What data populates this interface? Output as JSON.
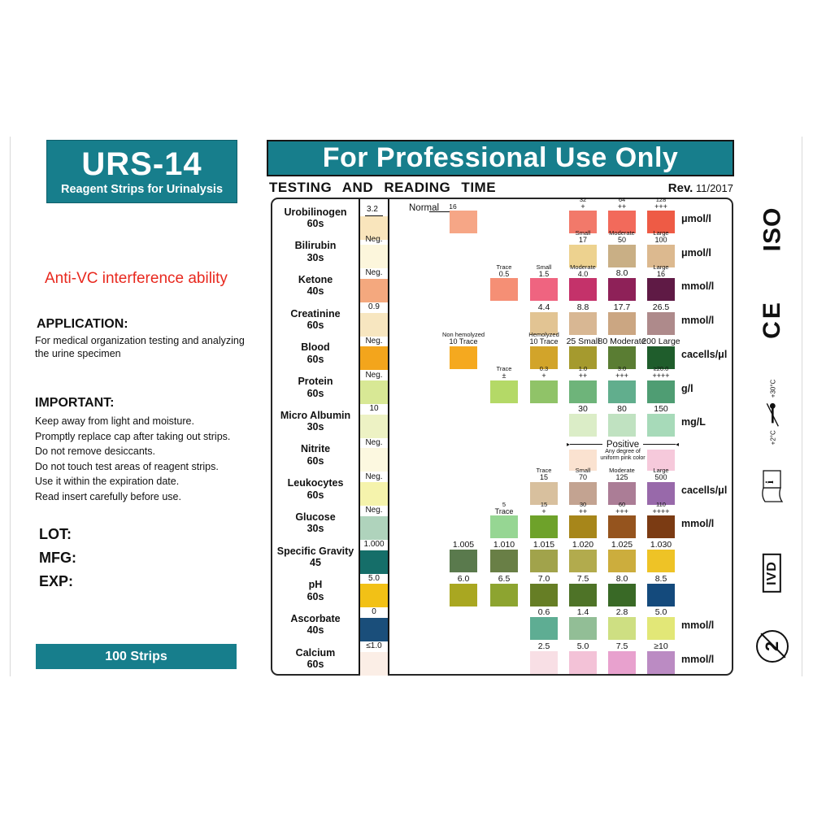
{
  "colors": {
    "teal": "#177e8c",
    "red": "#e8281e",
    "border": "#262626"
  },
  "left_panel": {
    "brand_title": "URS-14",
    "brand_subtitle": "Reagent Strips for Urinalysis",
    "highlight": "Anti-VC interference ability",
    "application_heading": "APPLICATION:",
    "application_lines": [
      "For medical organization testing and analyzing",
      "the urine specimen"
    ],
    "important_heading": "IMPORTANT:",
    "important_lines": [
      "Keep away from light and moisture.",
      "Promptly replace cap after taking out strips.",
      "Do not remove desiccants.",
      "Do not touch test areas of reagent strips.",
      "Use it within the expiration date.",
      "Read insert carefully before use."
    ],
    "lot_label": "LOT:",
    "mfg_label": "MFG:",
    "exp_label": "EXP:",
    "strips_count": "100 Strips"
  },
  "header": {
    "banner": "For Professional Use Only",
    "section_title": "TESTING AND READING TIME",
    "rev_label": "Rev.",
    "rev_value": "11/2017"
  },
  "sidebar": {
    "iso": "ISO",
    "ce_mark": "CE",
    "temp_high": "+30°C",
    "temp_low": "+2°C",
    "booklet_i": "i",
    "ivd": "IVD",
    "no_reuse": "2"
  },
  "chart_data": {
    "type": "table",
    "title": "TESTING AND READING TIME",
    "columns_note": "6 color-block columns; units at right",
    "rows": [
      {
        "parameter": "Urobilinogen",
        "read_time": "60s",
        "unit": "μmol/l",
        "strip_pad": {
          "value": "3.2",
          "color": "#f9e5bc",
          "arrow": true
        },
        "normal_label": "Normal",
        "normal_range_value": "16",
        "blocks": [
          {
            "col": 1,
            "line1": "",
            "line2": "",
            "color": "#f6a686"
          },
          {
            "col": 4,
            "line1": "32",
            "line2": "+",
            "color": "#f2796a"
          },
          {
            "col": 5,
            "line1": "64",
            "line2": "++",
            "color": "#f26a5b"
          },
          {
            "col": 6,
            "line1": "128",
            "line2": "+++",
            "color": "#ee5b45"
          }
        ]
      },
      {
        "parameter": "Bilirubin",
        "read_time": "30s",
        "unit": "μmol/l",
        "strip_pad": {
          "value": "Neg.",
          "color": "#fcf6dc"
        },
        "blocks": [
          {
            "col": 4,
            "line1": "Small",
            "line2": "17",
            "color": "#edd28f"
          },
          {
            "col": 5,
            "line1": "Moderate",
            "line2": "50",
            "color": "#c9af85"
          },
          {
            "col": 6,
            "line1": "Large",
            "line2": "100",
            "color": "#dcb98f"
          }
        ]
      },
      {
        "parameter": "Ketone",
        "read_time": "40s",
        "unit": "mmol/l",
        "strip_pad": {
          "value": "Neg.",
          "color": "#f4a87e"
        },
        "blocks": [
          {
            "col": 2,
            "line1": "Trace",
            "line2": "0.5",
            "color": "#f58f75"
          },
          {
            "col": 3,
            "line1": "Small",
            "line2": "1.5",
            "color": "#ef6480"
          },
          {
            "col": 4,
            "line1": "Moderate",
            "line2": "4.0",
            "color": "#c4326a"
          },
          {
            "col": 5,
            "line1": "",
            "line2": "8.0",
            "color": "#8e2158"
          },
          {
            "col": 6,
            "line1": "Large",
            "line2": "16",
            "color": "#5f1a45"
          }
        ]
      },
      {
        "parameter": "Creatinine",
        "read_time": "60s",
        "unit": "mmol/l",
        "strip_pad": {
          "value": "0.9",
          "color": "#f7e6c0"
        },
        "blocks": [
          {
            "col": 3,
            "line1": "",
            "line2": "4.4",
            "color": "#e2c493"
          },
          {
            "col": 4,
            "line1": "",
            "line2": "8.8",
            "color": "#d8b793"
          },
          {
            "col": 5,
            "line1": "",
            "line2": "17.7",
            "color": "#cba682"
          },
          {
            "col": 6,
            "line1": "",
            "line2": "26.5",
            "color": "#ae8a8b"
          }
        ]
      },
      {
        "parameter": "Blood",
        "read_time": "60s",
        "unit": "cacells/μl",
        "strip_pad": {
          "value": "Neg.",
          "color": "#f3a51c"
        },
        "blocks": [
          {
            "col": 1,
            "line1": "Non hemolyzed",
            "line2": "10 Trace",
            "color": "#f5a91f",
            "speckled": true
          },
          {
            "col": 3,
            "line1": "Hemolyzed",
            "line2": "10 Trace",
            "color": "#d2a42a"
          },
          {
            "col": 4,
            "line1": "",
            "line2": "25 Small",
            "color": "#a59a2e"
          },
          {
            "col": 5,
            "line1": "",
            "line2": "80 Moderate",
            "color": "#5a7d33"
          },
          {
            "col": 6,
            "line1": "",
            "line2": "200 Large",
            "color": "#1f5d2c"
          }
        ]
      },
      {
        "parameter": "Protein",
        "read_time": "60s",
        "unit": "g/l",
        "strip_pad": {
          "value": "Neg.",
          "color": "#d8e895"
        },
        "blocks": [
          {
            "col": 2,
            "line1": "Trace",
            "line2": "±",
            "color": "#b4d967"
          },
          {
            "col": 3,
            "line1": "0.3",
            "line2": "+",
            "color": "#90c368"
          },
          {
            "col": 4,
            "line1": "1.0",
            "line2": "++",
            "color": "#6eb47a"
          },
          {
            "col": 5,
            "line1": "3.0",
            "line2": "+++",
            "color": "#61ae8d"
          },
          {
            "col": 6,
            "line1": "≥20.0",
            "line2": "++++",
            "color": "#4f9d73"
          }
        ]
      },
      {
        "parameter": "Micro Albumin",
        "read_time": "30s",
        "unit": "mg/L",
        "strip_pad": {
          "value": "10",
          "color": "#edf2c4"
        },
        "blocks": [
          {
            "col": 4,
            "line1": "",
            "line2": "30",
            "color": "#dbedc7"
          },
          {
            "col": 5,
            "line1": "",
            "line2": "80",
            "color": "#c0e2c1"
          },
          {
            "col": 6,
            "line1": "",
            "line2": "150",
            "color": "#a7dab9"
          }
        ]
      },
      {
        "parameter": "Nitrite",
        "read_time": "60s",
        "unit": "",
        "strip_pad": {
          "value": "Neg.",
          "color": "#fcf8e0"
        },
        "positive_label": "Positive",
        "note_lines": [
          "Any degree of",
          "uniform pink color"
        ],
        "blocks": [
          {
            "col": 4,
            "line1": "",
            "line2": "",
            "color": "#fae2d0"
          },
          {
            "col": 6,
            "line1": "",
            "line2": "",
            "color": "#f6c9db"
          }
        ]
      },
      {
        "parameter": "Leukocytes",
        "read_time": "60s",
        "unit": "cacells/μl",
        "strip_pad": {
          "value": "Neg.",
          "color": "#f5f3ac"
        },
        "blocks": [
          {
            "col": 3,
            "line1": "Trace",
            "line2": "15",
            "color": "#d8c09e"
          },
          {
            "col": 4,
            "line1": "Small",
            "line2": "70",
            "color": "#c3a391"
          },
          {
            "col": 5,
            "line1": "Moderate",
            "line2": "125",
            "color": "#ab7d96"
          },
          {
            "col": 6,
            "line1": "Large",
            "line2": "500",
            "color": "#9869aa"
          }
        ]
      },
      {
        "parameter": "Glucose",
        "read_time": "30s",
        "unit": "mmol/l",
        "strip_pad": {
          "value": "Neg.",
          "color": "#afd3bc"
        },
        "blocks": [
          {
            "col": 2,
            "line1": "5",
            "line2": "Trace",
            "color": "#96d693"
          },
          {
            "col": 3,
            "line1": "15",
            "line2": "+",
            "color": "#6ea22a"
          },
          {
            "col": 4,
            "line1": "30",
            "line2": "++",
            "color": "#a7861a"
          },
          {
            "col": 5,
            "line1": "60",
            "line2": "+++",
            "color": "#95541e"
          },
          {
            "col": 6,
            "line1": "110",
            "line2": "++++",
            "color": "#7b3b13"
          }
        ]
      },
      {
        "parameter": "Specific Gravity",
        "read_time": "45",
        "unit": "",
        "strip_pad": {
          "value": "1.000",
          "color": "#156e69"
        },
        "blocks": [
          {
            "col": 1,
            "line1": "",
            "line2": "1.005",
            "color": "#5a7a4d"
          },
          {
            "col": 2,
            "line1": "",
            "line2": "1.010",
            "color": "#697f46"
          },
          {
            "col": 3,
            "line1": "",
            "line2": "1.015",
            "color": "#a1a34b"
          },
          {
            "col": 4,
            "line1": "",
            "line2": "1.020",
            "color": "#b2ab4d"
          },
          {
            "col": 5,
            "line1": "",
            "line2": "1.025",
            "color": "#ccad3d"
          },
          {
            "col": 6,
            "line1": "",
            "line2": "1.030",
            "color": "#eec326"
          }
        ]
      },
      {
        "parameter": "pH",
        "read_time": "60s",
        "unit": "",
        "strip_pad": {
          "value": "5.0",
          "color": "#f2c116"
        },
        "blocks": [
          {
            "col": 1,
            "line1": "",
            "line2": "6.0",
            "color": "#a9a721"
          },
          {
            "col": 2,
            "line1": "",
            "line2": "6.5",
            "color": "#8da430"
          },
          {
            "col": 3,
            "line1": "",
            "line2": "7.0",
            "color": "#667e25"
          },
          {
            "col": 4,
            "line1": "",
            "line2": "7.5",
            "color": "#4e7327"
          },
          {
            "col": 5,
            "line1": "",
            "line2": "8.0",
            "color": "#396926"
          },
          {
            "col": 6,
            "line1": "",
            "line2": "8.5",
            "color": "#144a7c"
          }
        ]
      },
      {
        "parameter": "Ascorbate",
        "read_time": "40s",
        "unit": "mmol/l",
        "strip_pad": {
          "value": "0",
          "color": "#1a4e7a"
        },
        "blocks": [
          {
            "col": 3,
            "line1": "",
            "line2": "0.6",
            "color": "#5ead93"
          },
          {
            "col": 4,
            "line1": "",
            "line2": "1.4",
            "color": "#92be96"
          },
          {
            "col": 5,
            "line1": "",
            "line2": "2.8",
            "color": "#cedf82"
          },
          {
            "col": 6,
            "line1": "",
            "line2": "5.0",
            "color": "#e2e777"
          }
        ]
      },
      {
        "parameter": "Calcium",
        "read_time": "60s",
        "unit": "mmol/l",
        "strip_pad": {
          "value": "≤1.0",
          "color": "#fbeee6"
        },
        "blocks": [
          {
            "col": 3,
            "line1": "",
            "line2": "2.5",
            "color": "#f8dfe5"
          },
          {
            "col": 4,
            "line1": "",
            "line2": "5.0",
            "color": "#f3c2d7"
          },
          {
            "col": 5,
            "line1": "",
            "line2": "7.5",
            "color": "#e8a1ce"
          },
          {
            "col": 6,
            "line1": "",
            "line2": "≥10",
            "color": "#bb8bc3"
          }
        ]
      }
    ]
  }
}
